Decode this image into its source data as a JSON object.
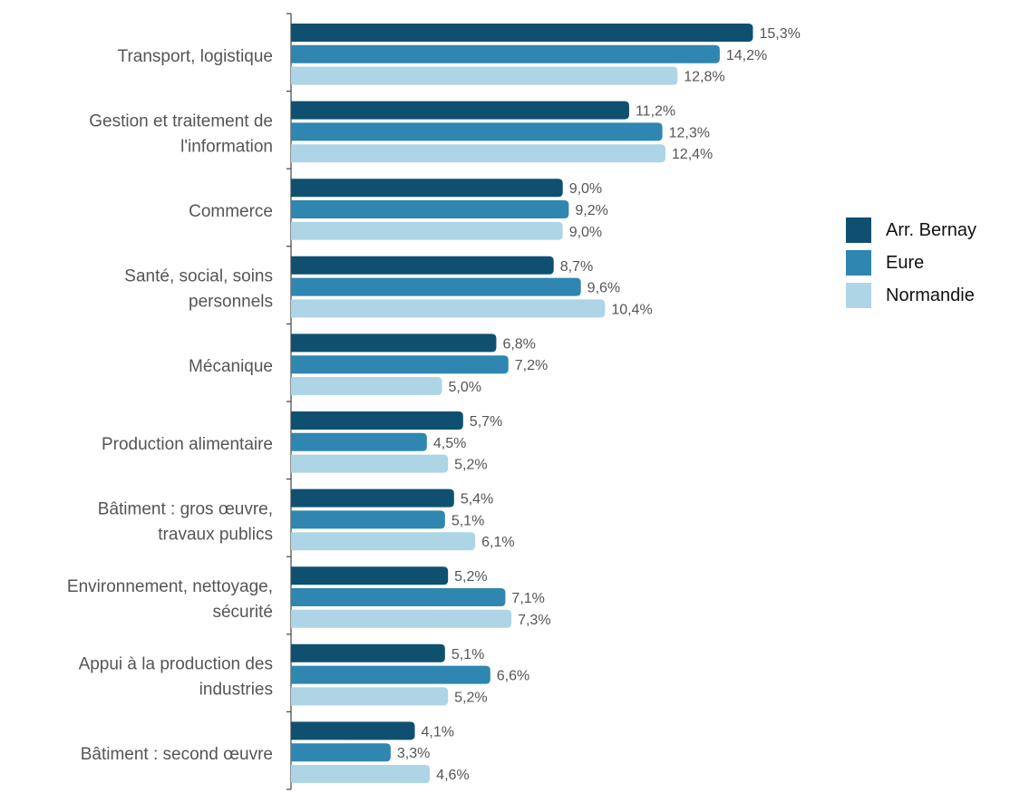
{
  "chart_data": {
    "type": "bar",
    "orientation": "horizontal",
    "title": "",
    "xlabel": "",
    "ylabel": "",
    "xlim": [
      0,
      16
    ],
    "grid": false,
    "legend_position": "right",
    "categories": [
      [
        "Transport, logistique"
      ],
      [
        "Gestion et traitement de",
        "l'information"
      ],
      [
        "Commerce"
      ],
      [
        "Santé, social, soins",
        "personnels"
      ],
      [
        "Mécanique"
      ],
      [
        "Production alimentaire"
      ],
      [
        "Bâtiment : gros œuvre,",
        "travaux publics"
      ],
      [
        "Environnement, nettoyage,",
        "sécurité"
      ],
      [
        "Appui à la production des",
        "industries"
      ],
      [
        "Bâtiment : second œuvre"
      ]
    ],
    "series": [
      {
        "name": "Arr. Bernay",
        "color": "#0f5070",
        "values": [
          15.3,
          11.2,
          9.0,
          8.7,
          6.8,
          5.7,
          5.4,
          5.2,
          5.1,
          4.1
        ],
        "labels": [
          "15,3%",
          "11,2%",
          "9,0%",
          "8,7%",
          "6,8%",
          "5,7%",
          "5,4%",
          "5,2%",
          "5,1%",
          "4,1%"
        ]
      },
      {
        "name": "Eure",
        "color": "#2f86b0",
        "values": [
          14.2,
          12.3,
          9.2,
          9.6,
          7.2,
          4.5,
          5.1,
          7.1,
          6.6,
          3.3
        ],
        "labels": [
          "14,2%",
          "12,3%",
          "9,2%",
          "9,6%",
          "7,2%",
          "4,5%",
          "5,1%",
          "7,1%",
          "6,6%",
          "3,3%"
        ]
      },
      {
        "name": "Normandie",
        "color": "#aed5e5",
        "values": [
          12.8,
          12.4,
          9.0,
          10.4,
          5.0,
          5.2,
          6.1,
          7.3,
          5.2,
          4.6
        ],
        "labels": [
          "12,8%",
          "12,4%",
          "9,0%",
          "10,4%",
          "5,0%",
          "5,2%",
          "6,1%",
          "7,3%",
          "5,2%",
          "4,6%"
        ]
      }
    ]
  }
}
